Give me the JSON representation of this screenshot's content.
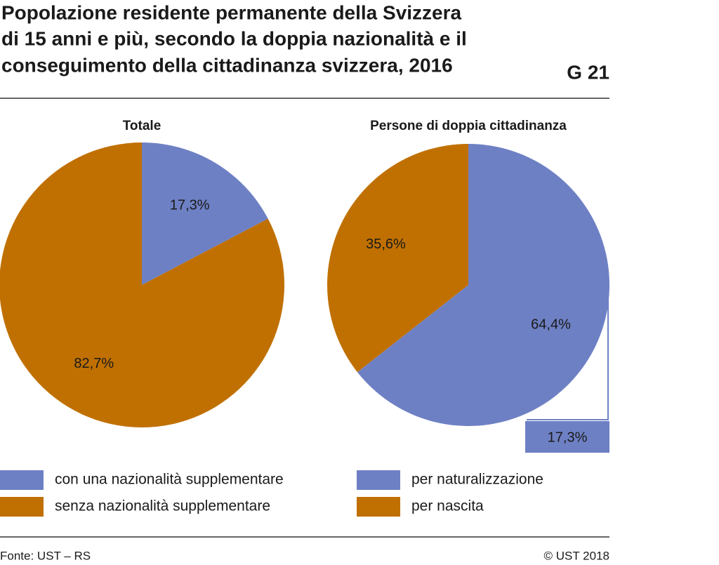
{
  "title": [
    "Popolazione residente permanente della Svizzera",
    "di 15 anni e più, secondo la doppia nazionalità e il",
    "conseguimento della cittadinanza svizzera, 2016"
  ],
  "code": "G 21",
  "source": "Fonte: UST – RS",
  "copyright": "© UST 2018",
  "chart_data": [
    {
      "type": "pie",
      "title": "Totale",
      "categories": [
        "con una nazionalità supplementare",
        "senza nazionalità supplementare"
      ],
      "values": [
        17.3,
        82.7
      ],
      "value_labels": [
        "17,3%",
        "82,7%"
      ],
      "colors": [
        "#6e80c4",
        "#c07000"
      ]
    },
    {
      "type": "pie",
      "title": "Persone di doppia cittadinanza",
      "categories": [
        "per naturalizzazione",
        "per nascita"
      ],
      "values": [
        64.4,
        35.6
      ],
      "value_labels": [
        "64,4%",
        "35,6%"
      ],
      "colors": [
        "#6e80c4",
        "#c07000"
      ],
      "annotation": {
        "value": 17.3,
        "label": "17,3%"
      }
    }
  ]
}
